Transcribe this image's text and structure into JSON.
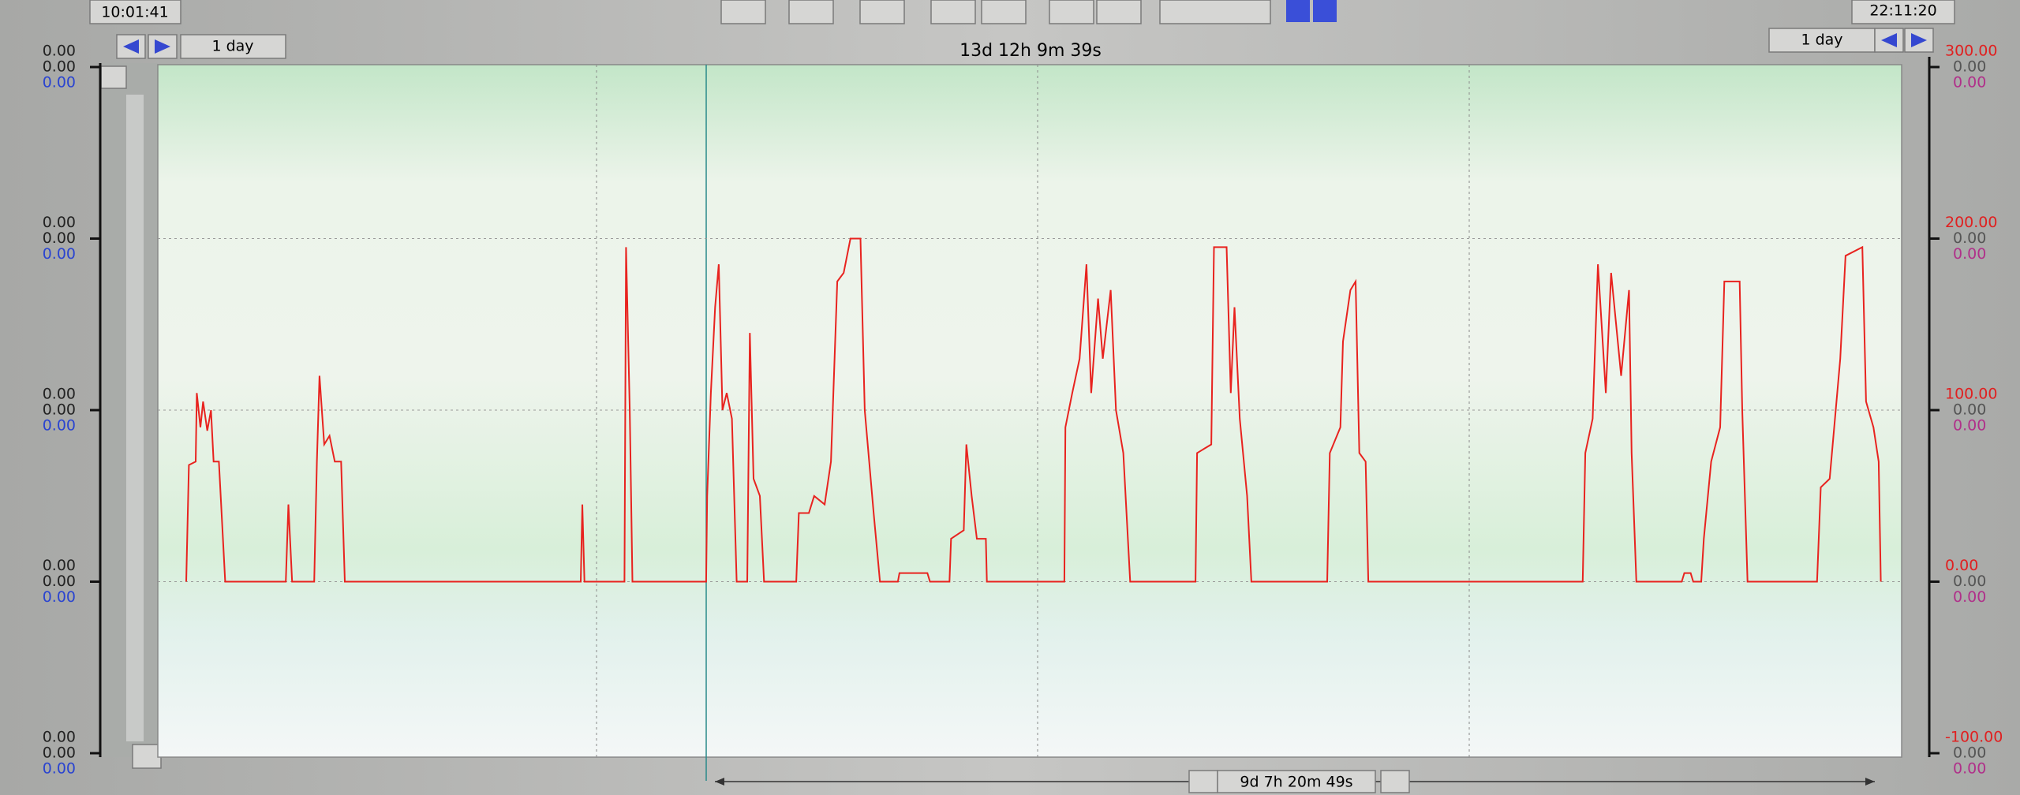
{
  "toolbar": {
    "start_time": "10:01:41",
    "end_time": "22:11:20",
    "left_range": "1 day",
    "right_range": "1 day",
    "span": "13d 12h 9m 39s",
    "cursor_span": "9d 7h 20m 49s"
  },
  "left_axis": [
    [
      "0.00",
      "0.00",
      "0.00"
    ],
    [
      "0.00",
      "0.00",
      "0.00"
    ],
    [
      "0.00",
      "0.00",
      "0.00"
    ],
    [
      "0.00",
      "0.00",
      "0.00"
    ],
    [
      "0.00",
      "0.00",
      "0.00"
    ]
  ],
  "right_axis_extra": [
    [
      "0.00",
      "0.00"
    ],
    [
      "0.00",
      "0.00"
    ],
    [
      "0.00",
      "0.00"
    ],
    [
      "0.00",
      "0.00"
    ],
    [
      "0.00",
      "0.00"
    ]
  ],
  "chart_data": {
    "type": "line",
    "x": [
      2.4,
      2.9,
      4.2,
      4.4,
      5.1,
      5.6,
      6.4,
      7.1,
      7.6,
      8.6,
      9.8,
      21.3,
      21.8,
      22.5,
      26.7,
      27.2,
      27.7,
      28.6,
      29.6,
      30.6,
      31.8,
      32.5,
      77.3,
      77.6,
      78.0,
      85.6,
      85.9,
      86.6,
      87.1,
      101.1,
      101.3,
      102.0,
      102.8,
      103.5,
      104.2,
      105.0,
      106.0,
      106.9,
      108.9,
      109.4,
      110.1,
      111.3,
      112.1,
      118.2,
      118.7,
      120.6,
      121.6,
      123.6,
      124.8,
      126.0,
      127.2,
      128.5,
      130.4,
      131.2,
      132.9,
      134.1,
      137.5,
      137.8,
      143.1,
      143.6,
      147.3,
      147.6,
      150.0,
      150.5,
      151.5,
      152.5,
      154.2,
      154.4,
      169.1,
      169.3,
      170.6,
      172.0,
      173.3,
      174.2,
      175.5,
      176.4,
      177.9,
      178.9,
      180.3,
      181.6,
      194.0,
      194.3,
      197.0,
      197.5,
      199.9,
      200.7,
      201.4,
      202.4,
      203.8,
      204.6,
      219.0,
      219.5,
      221.5,
      222.0,
      223.4,
      224.4,
      225.1,
      226.3,
      226.8,
      267.5,
      268.0,
      269.4,
      270.4,
      271.9,
      272.9,
      274.8,
      276.3,
      276.8,
      277.7,
      286.3,
      286.8,
      288.0,
      288.5,
      290.0,
      290.5,
      291.9,
      293.6,
      294.4,
      297.3,
      297.8,
      298.8,
      312.0,
      312.7,
      314.4,
      316.4,
      317.4,
      320.6,
      321.3,
      322.7,
      323.7,
      324.1
    ],
    "series": [
      {
        "color": "#e8231f",
        "values": [
          0,
          68,
          70,
          110,
          90,
          105,
          88,
          100,
          70,
          70,
          0,
          0,
          45,
          0,
          0,
          70,
          120,
          80,
          85,
          70,
          70,
          0,
          0,
          45,
          0,
          0,
          195,
          100,
          0,
          0,
          50,
          110,
          160,
          185,
          100,
          110,
          95,
          0,
          0,
          145,
          60,
          50,
          0,
          0,
          40,
          40,
          50,
          45,
          70,
          175,
          180,
          200,
          200,
          100,
          40,
          0,
          0,
          5,
          5,
          0,
          0,
          25,
          30,
          80,
          50,
          25,
          25,
          0,
          0,
          90,
          110,
          130,
          185,
          110,
          165,
          130,
          170,
          100,
          75,
          0,
          0,
          75,
          80,
          195,
          195,
          110,
          160,
          95,
          50,
          0,
          0,
          75,
          90,
          140,
          170,
          175,
          75,
          70,
          0,
          0,
          75,
          95,
          185,
          110,
          180,
          120,
          170,
          75,
          0,
          0,
          5,
          5,
          0,
          0,
          25,
          70,
          90,
          175,
          175,
          100,
          0,
          0,
          55,
          60,
          130,
          190,
          195,
          105,
          90,
          70,
          0
        ]
      }
    ],
    "xlim": [
      0,
      324.16
    ],
    "ylim": [
      -100,
      300
    ],
    "yticks": [
      {
        "value": 300,
        "label": "300.00"
      },
      {
        "value": 200,
        "label": "200.00"
      },
      {
        "value": 100,
        "label": "100.00"
      },
      {
        "value": 0,
        "label": "0.00"
      },
      {
        "value": -100,
        "label": "-100.00"
      }
    ],
    "grid": true
  }
}
